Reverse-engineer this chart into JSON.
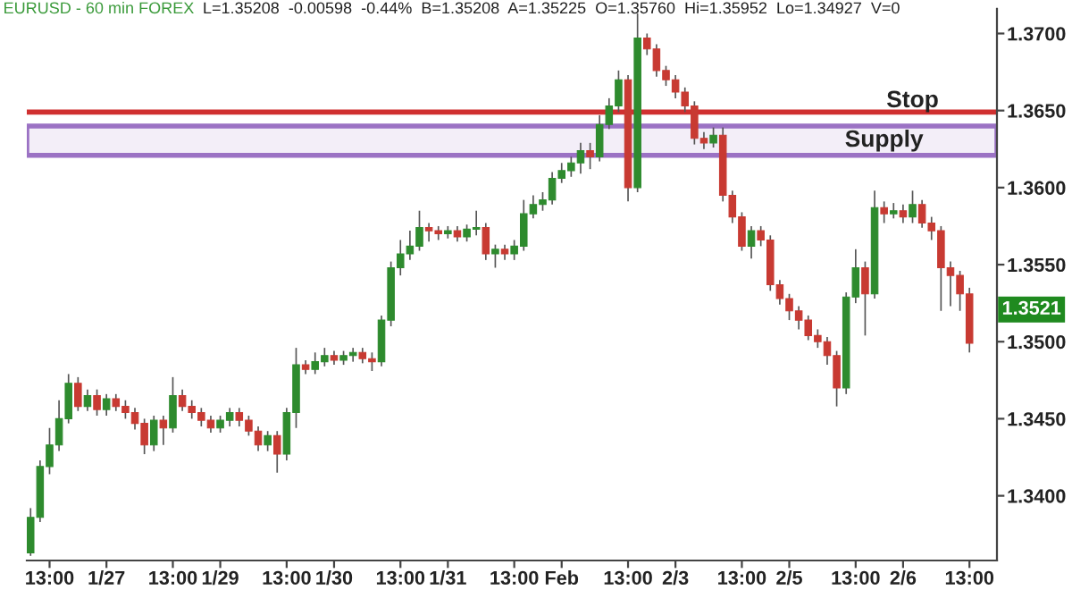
{
  "chart_data": {
    "type": "candlestick",
    "title": "EURUSD - 60 min FOREX",
    "subtitle": "L=1.35208  -0.00598  -0.44%  B=1.35208  A=1.35225  O=1.35760  Hi=1.35952  Lo=1.34927  V=0",
    "categories": [
      null,
      null,
      "13:00",
      null,
      null,
      null,
      null,
      null,
      "1/27",
      null,
      null,
      null,
      null,
      null,
      null,
      "13:00",
      null,
      null,
      null,
      null,
      "1/29",
      null,
      null,
      null,
      null,
      null,
      null,
      "13:00",
      null,
      null,
      null,
      null,
      "1/30",
      null,
      null,
      null,
      null,
      null,
      null,
      "13:00",
      null,
      null,
      null,
      null,
      "1/31",
      null,
      null,
      null,
      null,
      null,
      null,
      "13:00",
      null,
      null,
      null,
      null,
      "Feb",
      null,
      null,
      null,
      null,
      null,
      null,
      "13:00",
      null,
      null,
      null,
      null,
      "2/3",
      null,
      null,
      null,
      null,
      null,
      null,
      "13:00",
      null,
      null,
      null,
      null,
      "2/5",
      null,
      null,
      null,
      null,
      null,
      null,
      "13:00",
      null,
      null,
      null,
      null,
      "2/6",
      null,
      null,
      null,
      null,
      null,
      null,
      "13:00"
    ],
    "ohlc": [
      [
        1.3363,
        1.3392,
        1.3361,
        1.3386
      ],
      [
        1.3386,
        1.3423,
        1.3383,
        1.3419
      ],
      [
        1.3419,
        1.3444,
        1.3414,
        1.3433
      ],
      [
        1.3433,
        1.3462,
        1.3429,
        1.345
      ],
      [
        1.345,
        1.3479,
        1.3447,
        1.3473
      ],
      [
        1.3473,
        1.3477,
        1.3455,
        1.3458
      ],
      [
        1.3458,
        1.3469,
        1.3455,
        1.3465
      ],
      [
        1.3465,
        1.3469,
        1.3452,
        1.3456
      ],
      [
        1.3456,
        1.3466,
        1.3452,
        1.3463
      ],
      [
        1.3463,
        1.3466,
        1.3455,
        1.3458
      ],
      [
        1.3458,
        1.3462,
        1.345,
        1.3454
      ],
      [
        1.3454,
        1.3457,
        1.3443,
        1.3447
      ],
      [
        1.3447,
        1.345,
        1.3427,
        1.3433
      ],
      [
        1.3433,
        1.3452,
        1.3429,
        1.3449
      ],
      [
        1.3449,
        1.3452,
        1.3433,
        1.3444
      ],
      [
        1.3444,
        1.3477,
        1.3441,
        1.3465
      ],
      [
        1.3465,
        1.3469,
        1.3455,
        1.3458
      ],
      [
        1.3458,
        1.3462,
        1.345,
        1.3454
      ],
      [
        1.3454,
        1.3457,
        1.3445,
        1.3449
      ],
      [
        1.3449,
        1.3452,
        1.3441,
        1.3444
      ],
      [
        1.3444,
        1.3452,
        1.3441,
        1.3449
      ],
      [
        1.3449,
        1.3457,
        1.3445,
        1.3454
      ],
      [
        1.3454,
        1.3457,
        1.3445,
        1.3449
      ],
      [
        1.3449,
        1.3452,
        1.3439,
        1.3442
      ],
      [
        1.3442,
        1.3445,
        1.3429,
        1.3433
      ],
      [
        1.3433,
        1.3442,
        1.3429,
        1.3439
      ],
      [
        1.3439,
        1.3442,
        1.3415,
        1.3427
      ],
      [
        1.3427,
        1.3457,
        1.3423,
        1.3454
      ],
      [
        1.3454,
        1.3496,
        1.3444,
        1.3485
      ],
      [
        1.3485,
        1.3488,
        1.3479,
        1.3482
      ],
      [
        1.3482,
        1.3493,
        1.3479,
        1.3487
      ],
      [
        1.3487,
        1.3496,
        1.3484,
        1.3491
      ],
      [
        1.3491,
        1.3494,
        1.3485,
        1.3488
      ],
      [
        1.3488,
        1.3494,
        1.3485,
        1.3491
      ],
      [
        1.3491,
        1.3496,
        1.3487,
        1.3493
      ],
      [
        1.3493,
        1.3496,
        1.3486,
        1.3489
      ],
      [
        1.3489,
        1.3493,
        1.3481,
        1.3487
      ],
      [
        1.3487,
        1.3517,
        1.3484,
        1.3514
      ],
      [
        1.3514,
        1.3552,
        1.351,
        1.3548
      ],
      [
        1.3548,
        1.3566,
        1.3543,
        1.3557
      ],
      [
        1.3557,
        1.3572,
        1.3553,
        1.3562
      ],
      [
        1.3562,
        1.3585,
        1.3559,
        1.3574
      ],
      [
        1.3574,
        1.3577,
        1.3565,
        1.3572
      ],
      [
        1.3572,
        1.3575,
        1.3566,
        1.357
      ],
      [
        1.357,
        1.3575,
        1.3567,
        1.3572
      ],
      [
        1.3572,
        1.3575,
        1.3565,
        1.3568
      ],
      [
        1.3568,
        1.3576,
        1.3565,
        1.3573
      ],
      [
        1.3573,
        1.3585,
        1.3569,
        1.3574
      ],
      [
        1.3574,
        1.3577,
        1.3553,
        1.3557
      ],
      [
        1.3557,
        1.3563,
        1.3548,
        1.356
      ],
      [
        1.356,
        1.3563,
        1.3553,
        1.3557
      ],
      [
        1.3557,
        1.3566,
        1.3553,
        1.3562
      ],
      [
        1.3562,
        1.3592,
        1.3559,
        1.3583
      ],
      [
        1.3583,
        1.3595,
        1.358,
        1.3589
      ],
      [
        1.3589,
        1.3597,
        1.3585,
        1.3592
      ],
      [
        1.3592,
        1.361,
        1.3589,
        1.3606
      ],
      [
        1.3606,
        1.3616,
        1.3603,
        1.3611
      ],
      [
        1.3611,
        1.362,
        1.3607,
        1.3616
      ],
      [
        1.3616,
        1.3629,
        1.3609,
        1.3624
      ],
      [
        1.3624,
        1.3629,
        1.3612,
        1.362
      ],
      [
        1.362,
        1.3647,
        1.3617,
        1.3641
      ],
      [
        1.3641,
        1.3658,
        1.3638,
        1.3653
      ],
      [
        1.3653,
        1.3676,
        1.3649,
        1.367
      ],
      [
        1.367,
        1.3673,
        1.3591,
        1.36
      ],
      [
        1.36,
        1.3713,
        1.3597,
        1.3697
      ],
      [
        1.3697,
        1.37,
        1.3686,
        1.369
      ],
      [
        1.369,
        1.3693,
        1.3672,
        1.3676
      ],
      [
        1.3676,
        1.3679,
        1.3666,
        1.367
      ],
      [
        1.367,
        1.3673,
        1.3658,
        1.3662
      ],
      [
        1.3662,
        1.3665,
        1.3649,
        1.3653
      ],
      [
        1.3653,
        1.3656,
        1.3628,
        1.3632
      ],
      [
        1.3632,
        1.3636,
        1.3625,
        1.3629
      ],
      [
        1.3629,
        1.3639,
        1.3626,
        1.3634
      ],
      [
        1.3634,
        1.3639,
        1.3591,
        1.3595
      ],
      [
        1.3595,
        1.3598,
        1.3577,
        1.3581
      ],
      [
        1.3581,
        1.3584,
        1.3559,
        1.3562
      ],
      [
        1.3562,
        1.3575,
        1.3554,
        1.3572
      ],
      [
        1.3572,
        1.3575,
        1.3562,
        1.3566
      ],
      [
        1.3566,
        1.3569,
        1.3533,
        1.3537
      ],
      [
        1.3537,
        1.354,
        1.3524,
        1.3528
      ],
      [
        1.3528,
        1.3531,
        1.3514,
        1.352
      ],
      [
        1.352,
        1.3523,
        1.3508,
        1.3514
      ],
      [
        1.3514,
        1.3517,
        1.3501,
        1.3504
      ],
      [
        1.3504,
        1.3508,
        1.3496,
        1.35
      ],
      [
        1.35,
        1.3503,
        1.3485,
        1.3491
      ],
      [
        1.3491,
        1.3494,
        1.3458,
        1.347
      ],
      [
        1.347,
        1.3532,
        1.3466,
        1.3529
      ],
      [
        1.3529,
        1.356,
        1.3525,
        1.3548
      ],
      [
        1.3548,
        1.3552,
        1.3504,
        1.3531
      ],
      [
        1.3531,
        1.3598,
        1.3528,
        1.3587
      ],
      [
        1.3587,
        1.3591,
        1.3577,
        1.3583
      ],
      [
        1.3583,
        1.359,
        1.358,
        1.3585
      ],
      [
        1.3585,
        1.3589,
        1.3577,
        1.3581
      ],
      [
        1.3581,
        1.3598,
        1.3577,
        1.3589
      ],
      [
        1.3589,
        1.3592,
        1.3574,
        1.3577
      ],
      [
        1.3577,
        1.3581,
        1.3566,
        1.3572
      ],
      [
        1.3572,
        1.3575,
        1.352,
        1.3548
      ],
      [
        1.3548,
        1.3552,
        1.3523,
        1.3543
      ],
      [
        1.3543,
        1.3546,
        1.352,
        1.3531
      ],
      [
        1.3531,
        1.3535,
        1.3493,
        1.3499
      ]
    ],
    "ylim": [
      1.3358,
      1.3716
    ],
    "yticks": [
      {
        "value": 1.34,
        "label": "1.3400"
      },
      {
        "value": 1.345,
        "label": "1.3450"
      },
      {
        "value": 1.35,
        "label": "1.3500"
      },
      {
        "value": 1.355,
        "label": "1.3550"
      },
      {
        "value": 1.36,
        "label": "1.3600"
      },
      {
        "value": 1.365,
        "label": "1.3650"
      },
      {
        "value": 1.37,
        "label": "1.3700"
      }
    ],
    "ref_lines": [
      {
        "axis": "y",
        "value": 1.3649,
        "label": "Stop",
        "color": "#d03030"
      }
    ],
    "bands": [
      {
        "axis": "y",
        "from": 1.3621,
        "to": 1.364,
        "label": "Supply",
        "color": "#9b72c4"
      }
    ],
    "annotations": [
      "1.3521"
    ],
    "grid": false,
    "legend": false
  }
}
